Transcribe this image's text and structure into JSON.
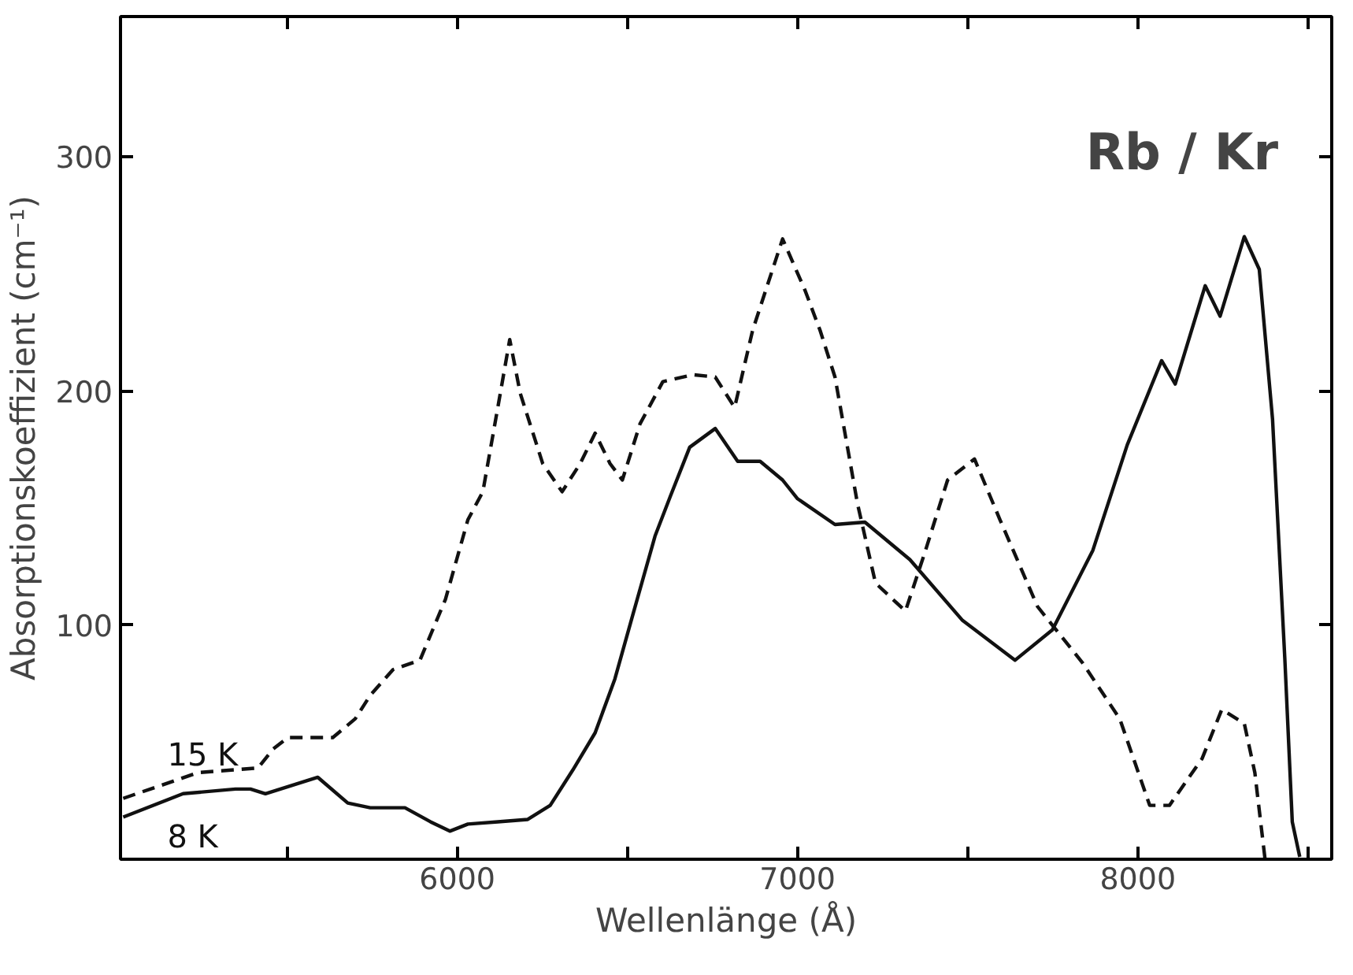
{
  "chart_data": {
    "type": "line",
    "title": "Rb / Kr",
    "xlabel": "Wellenlänge (Å)",
    "ylabel": "Absorptionskoeffizient (cm⁻¹)",
    "xlim": [
      5010,
      8570
    ],
    "ylim": [
      0,
      360
    ],
    "xticks": [
      {
        "value": 5500,
        "label": null
      },
      6000,
      {
        "value": 6500,
        "label": null
      },
      7000,
      {
        "value": 7500,
        "label": null
      },
      8000,
      {
        "value": 8500,
        "label": null
      }
    ],
    "yticks": [
      100,
      200,
      300
    ],
    "grid": false,
    "marker": "none",
    "series": [
      {
        "name": "15 K",
        "color": "#111111",
        "line_style": "dashed",
        "x": [
          5018,
          5238,
          5414,
          5458,
          5502,
          5634,
          5700,
          5744,
          5811,
          5890,
          5965,
          6031,
          6075,
          6119,
          6154,
          6185,
          6251,
          6308,
          6361,
          6405,
          6449,
          6485,
          6537,
          6604,
          6692,
          6758,
          6815,
          6868,
          6956,
          7022,
          7066,
          7110,
          7176,
          7229,
          7317,
          7374,
          7441,
          7520,
          7595,
          7705,
          7837,
          7947,
          8035,
          8093,
          8189,
          8247,
          8313,
          8344,
          8374
        ],
        "values": [
          26,
          37,
          39,
          47,
          52,
          52,
          60,
          70,
          81,
          85,
          111,
          145,
          157,
          193,
          222,
          199,
          169,
          157,
          169,
          182,
          169,
          162,
          186,
          204,
          207,
          206,
          193,
          226,
          265,
          243,
          226,
          206,
          152,
          118,
          106,
          131,
          162,
          171,
          145,
          108,
          84,
          60,
          23,
          23,
          43,
          64,
          58,
          37,
          0
        ]
      },
      {
        "name": "8 K",
        "color": "#111111",
        "line_style": "solid",
        "x": [
          5018,
          5194,
          5348,
          5392,
          5436,
          5524,
          5590,
          5678,
          5744,
          5846,
          5921,
          5978,
          6031,
          6119,
          6207,
          6273,
          6339,
          6405,
          6463,
          6515,
          6581,
          6626,
          6683,
          6758,
          6824,
          6890,
          6956,
          7000,
          7110,
          7198,
          7330,
          7485,
          7639,
          7749,
          7868,
          7969,
          8070,
          8110,
          8198,
          8242,
          8313,
          8357,
          8396,
          8432,
          8454,
          8476
        ],
        "values": [
          18,
          28,
          30,
          30,
          28,
          32,
          35,
          24,
          22,
          22,
          16,
          12,
          15,
          16,
          17,
          23,
          38,
          54,
          77,
          104,
          138,
          155,
          176,
          184,
          170,
          170,
          162,
          154,
          143,
          144,
          128,
          102,
          85,
          98,
          132,
          177,
          213,
          203,
          245,
          232,
          266,
          252,
          188,
          86,
          16,
          1
        ]
      }
    ]
  }
}
